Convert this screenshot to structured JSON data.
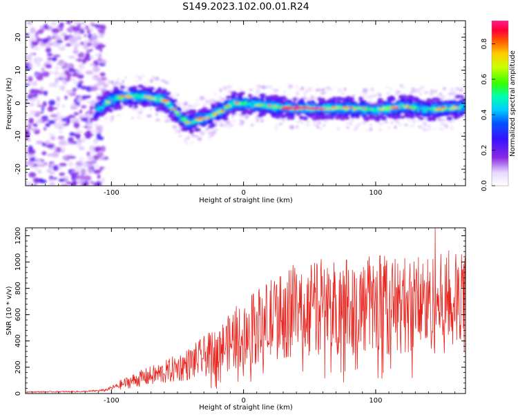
{
  "title": "S149.2023.102.00.01.R24",
  "colors": {
    "snr_line": "#e8251f",
    "axis": "#000000"
  },
  "chart_data": [
    {
      "type": "heatmap",
      "xlabel": "Height of straight line (km)",
      "ylabel": "Frequency (Hz)",
      "xlim": [
        -165,
        168
      ],
      "ylim": [
        -25,
        25
      ],
      "xticks": [
        -100,
        0,
        100
      ],
      "yticks": [
        -20,
        -10,
        0,
        10,
        20
      ],
      "ridge": [
        [
          -112,
          -2
        ],
        [
          -100,
          1
        ],
        [
          -90,
          2
        ],
        [
          -75,
          2
        ],
        [
          -60,
          1
        ],
        [
          -55,
          -1
        ],
        [
          -48,
          -4
        ],
        [
          -42,
          -6
        ],
        [
          -35,
          -5
        ],
        [
          -25,
          -4
        ],
        [
          -15,
          -2
        ],
        [
          -8,
          0
        ],
        [
          0,
          0
        ],
        [
          20,
          -1
        ],
        [
          40,
          -1.5
        ],
        [
          60,
          -1.5
        ],
        [
          80,
          -1.5
        ],
        [
          100,
          -2
        ],
        [
          120,
          -1
        ],
        [
          140,
          -2
        ],
        [
          168,
          -1
        ]
      ],
      "colorbar": {
        "label": "Normalized spectral amplitude",
        "range": [
          0.0,
          0.93
        ],
        "ticks": [
          "0.0",
          "0.2",
          "0.4",
          "0.6",
          "0.8"
        ]
      }
    },
    {
      "type": "line",
      "xlabel": "Height of straight line (km)",
      "ylabel": "SNR (10 * v/v)",
      "xlim": [
        -165,
        168
      ],
      "ylim": [
        0,
        1260
      ],
      "xticks": [
        -100,
        0,
        100
      ],
      "yticks": [
        0,
        200,
        400,
        600,
        800,
        1000,
        1200
      ],
      "envelope": [
        [
          -165,
          12
        ],
        [
          -120,
          15
        ],
        [
          -105,
          25
        ],
        [
          -95,
          60
        ],
        [
          -80,
          110
        ],
        [
          -60,
          160
        ],
        [
          -40,
          230
        ],
        [
          -20,
          330
        ],
        [
          0,
          450
        ],
        [
          20,
          560
        ],
        [
          40,
          620
        ],
        [
          60,
          650
        ],
        [
          80,
          660
        ],
        [
          100,
          660
        ],
        [
          120,
          670
        ],
        [
          140,
          680
        ],
        [
          168,
          690
        ]
      ],
      "noise_amplitude": 0.35,
      "peak": [
        145,
        1260
      ]
    }
  ]
}
